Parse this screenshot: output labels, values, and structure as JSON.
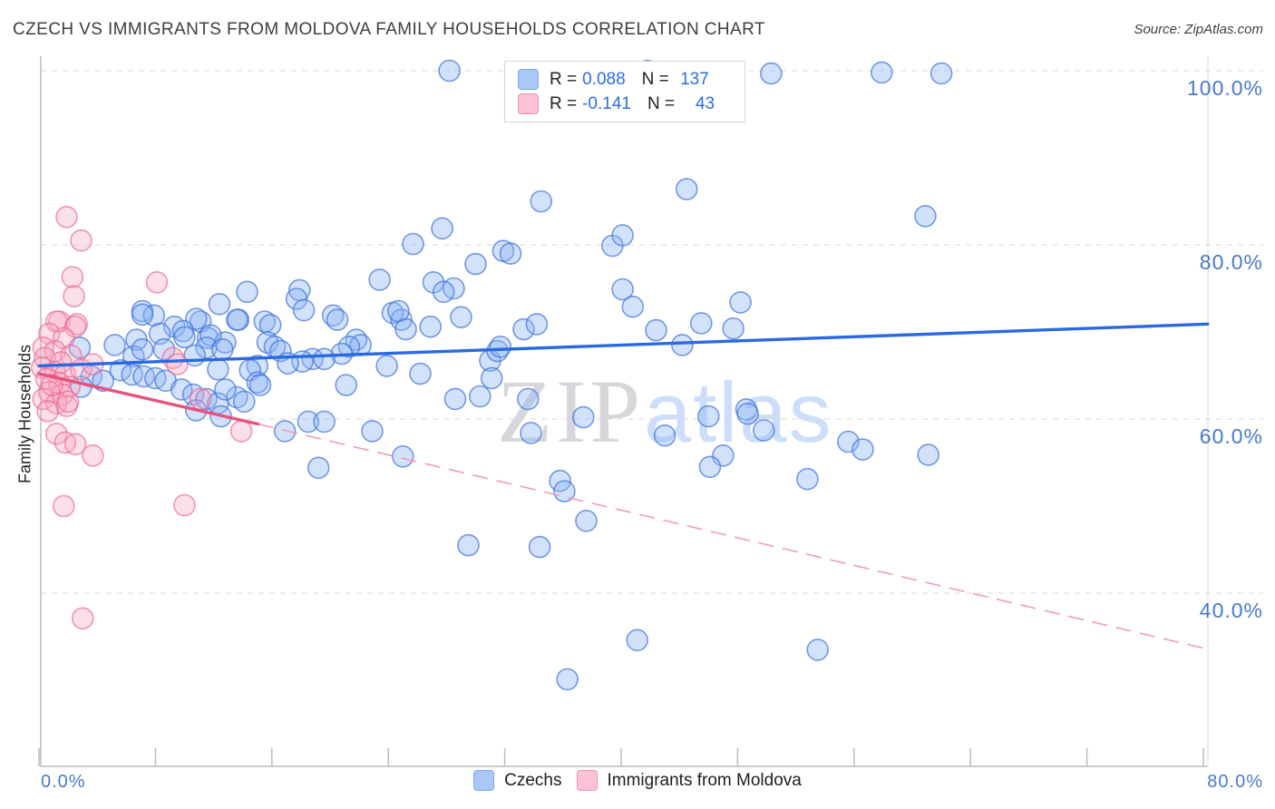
{
  "header": {
    "title": "CZECH VS IMMIGRANTS FROM MOLDOVA FAMILY HOUSEHOLDS CORRELATION CHART",
    "source": "Source: ZipAtlas.com"
  },
  "watermark": {
    "zip": "ZIP",
    "atlas": "atlas"
  },
  "y_axis_title": "Family Households",
  "legend_box": {
    "rows": [
      {
        "series": "Czechs",
        "r_label": "R =",
        "r_value": "0.088",
        "n_label": "N =",
        "n_value": "137",
        "swatch_color": "#aac8f7"
      },
      {
        "series": "Immigrants from Moldova",
        "r_label": "R =",
        "r_value": "-0.141",
        "n_label": "N =",
        "n_value": "43",
        "swatch_color": "#fbc3d5"
      }
    ]
  },
  "bottom_legend": [
    {
      "label": "Czechs",
      "swatch_color": "#aac8f7"
    },
    {
      "label": "Immigrants from Moldova",
      "swatch_color": "#fbc3d5"
    }
  ],
  "axes": {
    "x_tick_labels": [
      "0.0%",
      "80.0%"
    ],
    "y_tick_labels": [
      "100.0%",
      "80.0%",
      "60.0%",
      "40.0%"
    ],
    "y_gridline_values": [
      100,
      80,
      60,
      40
    ],
    "x_tick_values": [
      0,
      8,
      16,
      24,
      32,
      40,
      48,
      56,
      64,
      72,
      80
    ],
    "x_range": [
      0,
      80
    ],
    "y_range": [
      20,
      102
    ],
    "grid": "dashed horizontal"
  },
  "chart_data": {
    "type": "scatter",
    "title": "CZECH VS IMMIGRANTS FROM MOLDOVA FAMILY HOUSEHOLDS CORRELATION CHART",
    "xlabel_unit": "percent",
    "ylabel": "Family Households",
    "legend_position": "bottom-center",
    "series": [
      {
        "name": "Czechs",
        "R": 0.088,
        "N": 137,
        "stroke": "rgba(63,114,217,0.70)",
        "fill": "rgba(138,180,247,0.38)",
        "points": [
          [
            28.2,
            100
          ],
          [
            41.8,
            100
          ],
          [
            46.7,
            99.8
          ],
          [
            50.3,
            99.7
          ],
          [
            57.9,
            99.8
          ],
          [
            62.0,
            99.7
          ],
          [
            34.5,
            85.0
          ],
          [
            44.5,
            86.4
          ],
          [
            60.9,
            83.3
          ],
          [
            27.7,
            81.9
          ],
          [
            25.7,
            80.1
          ],
          [
            31.9,
            79.3
          ],
          [
            32.4,
            79.0
          ],
          [
            30.0,
            77.8
          ],
          [
            39.4,
            79.9
          ],
          [
            40.1,
            81.1
          ],
          [
            23.4,
            76.0
          ],
          [
            27.1,
            75.7
          ],
          [
            28.5,
            75.0
          ],
          [
            27.8,
            74.6
          ],
          [
            29.0,
            71.7
          ],
          [
            14.3,
            74.6
          ],
          [
            12.4,
            73.2
          ],
          [
            17.9,
            74.8
          ],
          [
            17.7,
            73.8
          ],
          [
            18.2,
            72.5
          ],
          [
            13.7,
            71.4
          ],
          [
            7.1,
            72.4
          ],
          [
            7.9,
            71.9
          ],
          [
            11.1,
            71.2
          ],
          [
            13.6,
            71.4
          ],
          [
            15.5,
            71.2
          ],
          [
            20.2,
            71.9
          ],
          [
            20.5,
            71.4
          ],
          [
            24.3,
            72.2
          ],
          [
            24.9,
            71.4
          ],
          [
            24.7,
            72.4
          ],
          [
            25.2,
            70.3
          ],
          [
            26.9,
            70.6
          ],
          [
            33.3,
            70.3
          ],
          [
            34.2,
            70.9
          ],
          [
            15.9,
            70.8
          ],
          [
            15.7,
            68.8
          ],
          [
            16.2,
            68.3
          ],
          [
            16.6,
            67.8
          ],
          [
            11.6,
            69.3
          ],
          [
            12.8,
            68.8
          ],
          [
            21.8,
            69.1
          ],
          [
            22.1,
            68.5
          ],
          [
            21.3,
            68.3
          ],
          [
            20.8,
            67.5
          ],
          [
            18.8,
            66.9
          ],
          [
            19.6,
            66.9
          ],
          [
            18.1,
            66.6
          ],
          [
            17.1,
            66.4
          ],
          [
            15.0,
            66.1
          ],
          [
            14.5,
            65.6
          ],
          [
            15.0,
            64.2
          ],
          [
            15.2,
            63.9
          ],
          [
            23.9,
            66.1
          ],
          [
            26.2,
            65.2
          ],
          [
            21.1,
            63.9
          ],
          [
            13.6,
            62.5
          ],
          [
            14.1,
            62.0
          ],
          [
            31.0,
            66.7
          ],
          [
            31.5,
            67.8
          ],
          [
            31.1,
            64.7
          ],
          [
            31.7,
            68.3
          ],
          [
            28.6,
            62.3
          ],
          [
            30.3,
            62.6
          ],
          [
            18.5,
            59.7
          ],
          [
            19.6,
            59.7
          ],
          [
            16.9,
            58.6
          ],
          [
            22.9,
            58.6
          ],
          [
            25.0,
            55.7
          ],
          [
            19.2,
            54.4
          ],
          [
            33.6,
            62.3
          ],
          [
            33.8,
            58.4
          ],
          [
            37.4,
            60.2
          ],
          [
            35.8,
            52.9
          ],
          [
            36.1,
            51.7
          ],
          [
            40.1,
            74.9
          ],
          [
            40.8,
            72.9
          ],
          [
            42.4,
            70.2
          ],
          [
            44.2,
            68.5
          ],
          [
            45.5,
            71.0
          ],
          [
            47.7,
            70.4
          ],
          [
            48.2,
            73.4
          ],
          [
            46.0,
            60.3
          ],
          [
            48.6,
            61.1
          ],
          [
            48.7,
            60.6
          ],
          [
            49.8,
            58.7
          ],
          [
            43.0,
            58.1
          ],
          [
            47.0,
            55.8
          ],
          [
            46.1,
            54.5
          ],
          [
            52.8,
            53.1
          ],
          [
            55.6,
            57.4
          ],
          [
            56.6,
            56.5
          ],
          [
            61.1,
            55.9
          ],
          [
            37.6,
            48.3
          ],
          [
            29.5,
            45.5
          ],
          [
            34.4,
            45.3
          ],
          [
            36.3,
            30.1
          ],
          [
            41.1,
            34.6
          ],
          [
            53.5,
            33.5
          ],
          [
            9.3,
            70.6
          ],
          [
            10.8,
            71.5
          ],
          [
            8.3,
            69.8
          ],
          [
            6.7,
            69.1
          ],
          [
            9.9,
            70.1
          ],
          [
            10.0,
            69.4
          ],
          [
            11.8,
            69.6
          ],
          [
            2.8,
            68.2
          ],
          [
            5.2,
            68.5
          ],
          [
            11.5,
            68.2
          ],
          [
            12.6,
            68.0
          ],
          [
            6.5,
            67.2
          ],
          [
            7.1,
            68.0
          ],
          [
            8.6,
            68.0
          ],
          [
            10.7,
            67.3
          ],
          [
            12.3,
            65.7
          ],
          [
            5.6,
            65.6
          ],
          [
            6.4,
            65.1
          ],
          [
            7.2,
            64.9
          ],
          [
            8.0,
            64.7
          ],
          [
            8.7,
            64.4
          ],
          [
            3.6,
            64.9
          ],
          [
            4.4,
            64.4
          ],
          [
            2.9,
            63.7
          ],
          [
            9.8,
            63.4
          ],
          [
            10.6,
            62.8
          ],
          [
            11.5,
            62.3
          ],
          [
            12.3,
            61.8
          ],
          [
            12.8,
            63.4
          ],
          [
            10.8,
            61.0
          ],
          [
            12.5,
            60.3
          ],
          [
            7.1,
            72.0
          ]
        ]
      },
      {
        "name": "Immigrants from Moldova",
        "R": -0.141,
        "N": 43,
        "stroke": "rgba(236,107,150,0.70)",
        "fill": "rgba(247,166,192,0.35)",
        "points": [
          [
            1.9,
            83.2
          ],
          [
            2.9,
            80.5
          ],
          [
            2.3,
            76.3
          ],
          [
            2.4,
            74.1
          ],
          [
            8.1,
            75.7
          ],
          [
            1.4,
            71.2
          ],
          [
            2.6,
            70.9
          ],
          [
            1.2,
            71.2
          ],
          [
            2.5,
            70.6
          ],
          [
            0.7,
            69.8
          ],
          [
            1.7,
            69.3
          ],
          [
            0.3,
            68.2
          ],
          [
            1.1,
            67.8
          ],
          [
            2.2,
            67.3
          ],
          [
            0.4,
            67.0
          ],
          [
            1.5,
            66.5
          ],
          [
            0.2,
            65.9
          ],
          [
            1.1,
            65.4
          ],
          [
            1.8,
            65.1
          ],
          [
            0.5,
            64.6
          ],
          [
            1.4,
            64.1
          ],
          [
            2.1,
            63.7
          ],
          [
            0.7,
            63.1
          ],
          [
            1.6,
            62.8
          ],
          [
            0.3,
            62.3
          ],
          [
            1.2,
            61.8
          ],
          [
            1.9,
            61.5
          ],
          [
            0.6,
            60.9
          ],
          [
            2.9,
            65.7
          ],
          [
            3.7,
            66.3
          ],
          [
            0.9,
            63.9
          ],
          [
            2.0,
            62.0
          ],
          [
            9.2,
            67.0
          ],
          [
            9.5,
            66.3
          ],
          [
            11.1,
            62.3
          ],
          [
            13.9,
            58.6
          ],
          [
            1.2,
            58.3
          ],
          [
            1.8,
            57.3
          ],
          [
            2.5,
            57.1
          ],
          [
            3.7,
            55.8
          ],
          [
            1.7,
            50.0
          ],
          [
            10.0,
            50.1
          ],
          [
            3.0,
            37.1
          ]
        ]
      }
    ],
    "trend_lines": [
      {
        "series": "Czechs",
        "style": "solid",
        "color": "#2a6ae0",
        "from": [
          0,
          66.1
        ],
        "to": [
          80.3,
          70.9
        ]
      },
      {
        "series": "Immigrants from Moldova",
        "style": "solid",
        "color": "#e4547c",
        "from": [
          0,
          65.2
        ],
        "to": [
          15.1,
          59.4
        ]
      },
      {
        "series": "Immigrants from Moldova",
        "style": "dashed",
        "color": "#f29cb4",
        "from": [
          15.1,
          59.4
        ],
        "to": [
          80.2,
          33.6
        ]
      }
    ]
  }
}
